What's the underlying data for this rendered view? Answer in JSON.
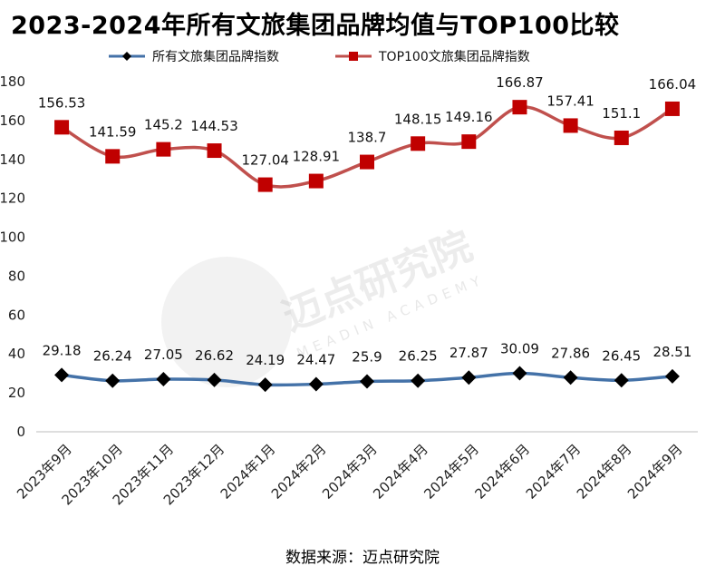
{
  "chart_data": {
    "type": "line",
    "title": "2023-2024年所有文旅集团品牌均值与TOP100比较",
    "categories": [
      "2023年9月",
      "2023年10月",
      "2023年11月",
      "2023年12月",
      "2024年1月",
      "2024年2月",
      "2024年3月",
      "2024年4月",
      "2024年5月",
      "2024年6月",
      "2024年7月",
      "2024年8月",
      "2024年9月"
    ],
    "series": [
      {
        "name": "所有文旅集团品牌指数",
        "color": "#4472a8",
        "marker": "diamond",
        "values": [
          29.18,
          26.24,
          27.05,
          26.62,
          24.19,
          24.47,
          25.9,
          26.25,
          27.87,
          30.09,
          27.86,
          26.45,
          28.51
        ],
        "labels": [
          "29.18",
          "26.24",
          "27.05",
          "26.62",
          "24.19",
          "24.47",
          "25.9",
          "26.25",
          "27.87",
          "30.09",
          "27.86",
          "26.45",
          "28.51"
        ]
      },
      {
        "name": "TOP100文旅集团品牌指数",
        "color": "#c0504d",
        "marker": "square",
        "values": [
          156.53,
          141.59,
          145.2,
          144.53,
          127.04,
          128.91,
          138.7,
          148.15,
          149.16,
          166.87,
          157.41,
          151.1,
          166.04
        ],
        "labels": [
          "156.53",
          "141.59",
          "145.2",
          "144.53",
          "127.04",
          "128.91",
          "138.7",
          "148.15",
          "149.16",
          "166.87",
          "157.41",
          "151.1",
          "166.04"
        ]
      }
    ],
    "ylim": [
      0,
      180
    ],
    "yticks": [
      "0",
      "20",
      "40",
      "60",
      "80",
      "100",
      "120",
      "140",
      "160",
      "180"
    ],
    "xlabel": "",
    "ylabel": "",
    "grid": false,
    "legend": "top-center"
  },
  "source_note": "数据来源：迈点研究院",
  "watermark": {
    "text": "迈点研究院",
    "subtext": "MEADIN ACADEMY"
  }
}
